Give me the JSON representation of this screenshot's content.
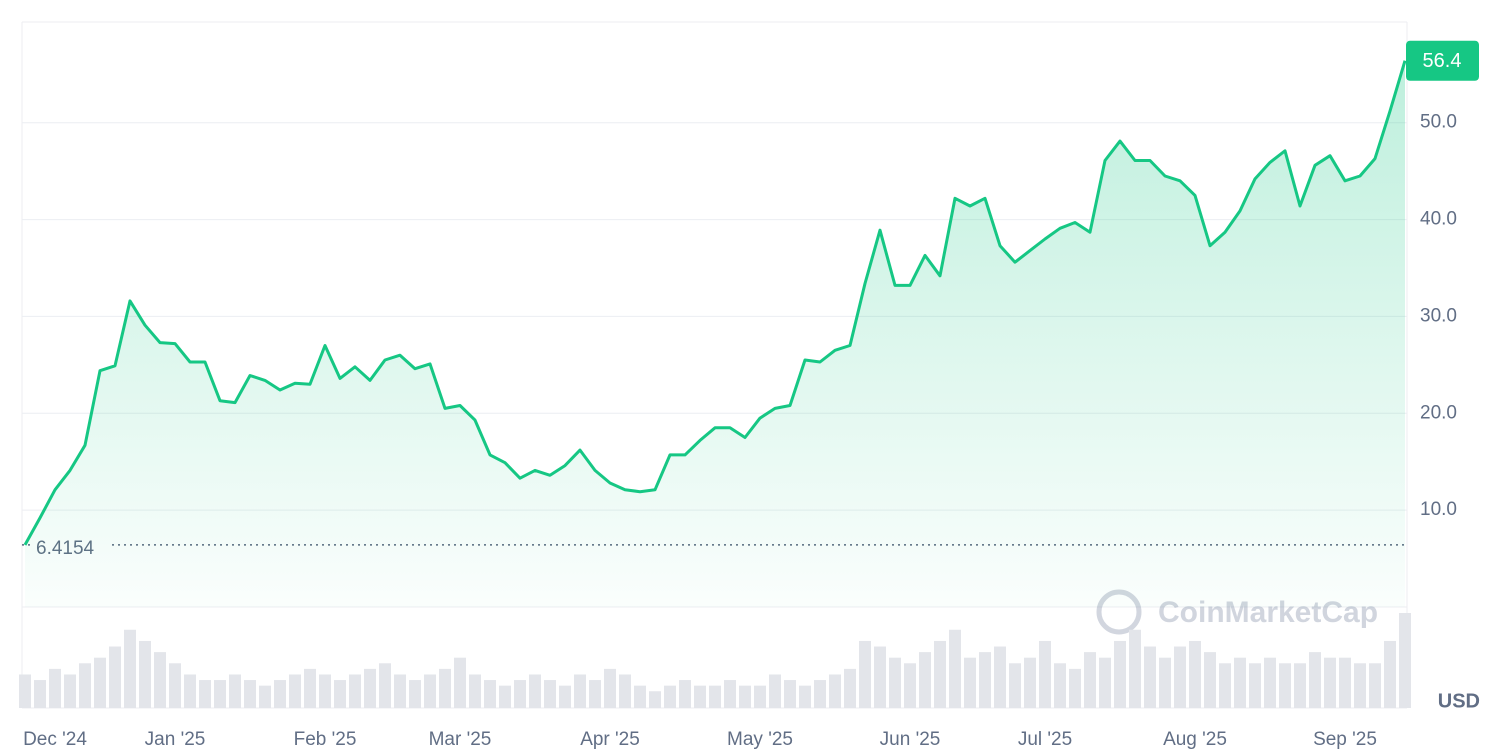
{
  "chart_data": {
    "type": "line",
    "categories": [
      null,
      null,
      "Dec '24",
      null,
      null,
      null,
      null,
      null,
      null,
      null,
      "Jan '25",
      null,
      null,
      null,
      null,
      null,
      null,
      null,
      null,
      null,
      "Feb '25",
      null,
      null,
      null,
      null,
      null,
      null,
      null,
      null,
      "Mar '25",
      null,
      null,
      null,
      null,
      null,
      null,
      null,
      null,
      null,
      "Apr '25",
      null,
      null,
      null,
      null,
      null,
      null,
      null,
      null,
      null,
      "May '25",
      null,
      null,
      null,
      null,
      null,
      null,
      null,
      null,
      null,
      "Jun '25",
      null,
      null,
      null,
      null,
      null,
      null,
      null,
      null,
      "Jul '25",
      null,
      null,
      null,
      null,
      null,
      null,
      null,
      null,
      null,
      "Aug '25",
      null,
      null,
      null,
      null,
      null,
      null,
      null,
      null,
      null,
      "Sep '25",
      null,
      null,
      null,
      null
    ],
    "values": [
      6.4154,
      9.2,
      12.1,
      14.1,
      16.7,
      24.4,
      24.9,
      31.6,
      29.1,
      27.3,
      27.2,
      25.3,
      25.3,
      21.3,
      21.1,
      23.9,
      23.4,
      22.4,
      23.1,
      23.0,
      27.0,
      23.6,
      24.8,
      23.4,
      25.5,
      26.0,
      24.6,
      25.1,
      20.5,
      20.8,
      19.3,
      15.7,
      14.9,
      13.3,
      14.1,
      13.6,
      14.6,
      16.2,
      14.1,
      12.8,
      12.1,
      11.9,
      12.1,
      15.7,
      15.7,
      17.2,
      18.5,
      18.5,
      17.5,
      19.5,
      20.5,
      20.8,
      25.5,
      25.3,
      26.5,
      27.0,
      33.4,
      38.9,
      33.2,
      33.2,
      36.3,
      34.2,
      42.2,
      41.4,
      42.2,
      37.3,
      35.6,
      36.8,
      38.0,
      39.1,
      39.7,
      38.7,
      46.1,
      48.1,
      46.1,
      46.1,
      44.5,
      44.0,
      42.5,
      37.3,
      38.7,
      40.9,
      44.2,
      45.9,
      47.1,
      41.4,
      45.6,
      46.6,
      44.0,
      44.5,
      46.3,
      51.2,
      56.4
    ],
    "volume": [
      30,
      25,
      35,
      30,
      40,
      45,
      55,
      70,
      60,
      50,
      40,
      30,
      25,
      25,
      30,
      25,
      20,
      25,
      30,
      35,
      30,
      25,
      30,
      35,
      40,
      30,
      25,
      30,
      35,
      45,
      30,
      25,
      20,
      25,
      30,
      25,
      20,
      30,
      25,
      35,
      30,
      20,
      15,
      20,
      25,
      20,
      20,
      25,
      20,
      20,
      30,
      25,
      20,
      25,
      30,
      35,
      60,
      55,
      45,
      40,
      50,
      60,
      70,
      45,
      50,
      55,
      40,
      45,
      60,
      40,
      35,
      50,
      45,
      60,
      70,
      55,
      45,
      55,
      60,
      50,
      40,
      45,
      40,
      45,
      40,
      40,
      50,
      45,
      45,
      40,
      40,
      60,
      85
    ],
    "color": "#16c784",
    "ylim": [
      0,
      60.4
    ],
    "yticks": [
      {
        "value": 10,
        "label": "10.0"
      },
      {
        "value": 20,
        "label": "20.0"
      },
      {
        "value": 30,
        "label": "30.0"
      },
      {
        "value": 40,
        "label": "40.0"
      },
      {
        "value": 50,
        "label": "50.0"
      }
    ],
    "grid": true,
    "reference_line": 6.4154,
    "currency": "USD",
    "watermark": "CoinMarketCap"
  }
}
